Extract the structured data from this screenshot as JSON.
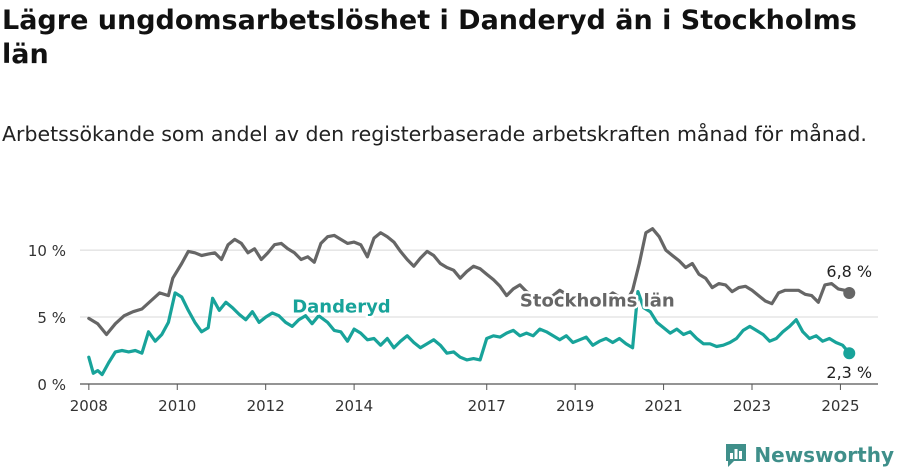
{
  "title": "Lägre ungdomsarbetslöshet i Danderyd än i Stockholms län",
  "subtitle": "Arbetssökande som andel av den registerbaserade arbetskraften månad för månad.",
  "brand": "Newsworthy",
  "chart_data": {
    "type": "line",
    "ylim": [
      0,
      11.8
    ],
    "xlim": [
      2007.8,
      2025.85
    ],
    "yticks": [
      0,
      5,
      10
    ],
    "ytick_labels": [
      "0 %",
      "5 %",
      "10 %"
    ],
    "xticks": [
      2008,
      2010,
      2012,
      2014,
      2017,
      2019,
      2021,
      2023,
      2025
    ],
    "xtick_labels": [
      "2008",
      "2010",
      "2012",
      "2014",
      "2017",
      "2019",
      "2021",
      "2023",
      "2025"
    ],
    "grid": true,
    "legend": "inline labels",
    "series": [
      {
        "name": "Stockholms län",
        "color": "#666666",
        "end_label": "6,8 %",
        "points": [
          [
            2008.0,
            4.9
          ],
          [
            2008.2,
            4.5
          ],
          [
            2008.4,
            3.7
          ],
          [
            2008.6,
            4.5
          ],
          [
            2008.8,
            5.1
          ],
          [
            2009.0,
            5.4
          ],
          [
            2009.2,
            5.6
          ],
          [
            2009.4,
            6.2
          ],
          [
            2009.6,
            6.8
          ],
          [
            2009.8,
            6.6
          ],
          [
            2009.9,
            7.9
          ],
          [
            2010.1,
            9.0
          ],
          [
            2010.25,
            9.9
          ],
          [
            2010.4,
            9.8
          ],
          [
            2010.55,
            9.6
          ],
          [
            2010.7,
            9.7
          ],
          [
            2010.85,
            9.8
          ],
          [
            2011.0,
            9.3
          ],
          [
            2011.15,
            10.4
          ],
          [
            2011.3,
            10.8
          ],
          [
            2011.45,
            10.5
          ],
          [
            2011.6,
            9.8
          ],
          [
            2011.75,
            10.1
          ],
          [
            2011.9,
            9.3
          ],
          [
            2012.05,
            9.8
          ],
          [
            2012.2,
            10.4
          ],
          [
            2012.35,
            10.5
          ],
          [
            2012.5,
            10.1
          ],
          [
            2012.65,
            9.8
          ],
          [
            2012.8,
            9.3
          ],
          [
            2012.95,
            9.5
          ],
          [
            2013.1,
            9.1
          ],
          [
            2013.25,
            10.5
          ],
          [
            2013.4,
            11.0
          ],
          [
            2013.55,
            11.1
          ],
          [
            2013.7,
            10.8
          ],
          [
            2013.85,
            10.5
          ],
          [
            2014.0,
            10.6
          ],
          [
            2014.15,
            10.4
          ],
          [
            2014.3,
            9.5
          ],
          [
            2014.45,
            10.9
          ],
          [
            2014.6,
            11.3
          ],
          [
            2014.75,
            11.0
          ],
          [
            2014.9,
            10.6
          ],
          [
            2015.05,
            9.9
          ],
          [
            2015.2,
            9.3
          ],
          [
            2015.35,
            8.8
          ],
          [
            2015.5,
            9.4
          ],
          [
            2015.65,
            9.9
          ],
          [
            2015.8,
            9.6
          ],
          [
            2015.95,
            9.0
          ],
          [
            2016.1,
            8.7
          ],
          [
            2016.25,
            8.5
          ],
          [
            2016.4,
            7.9
          ],
          [
            2016.55,
            8.4
          ],
          [
            2016.7,
            8.8
          ],
          [
            2016.85,
            8.6
          ],
          [
            2017.0,
            8.2
          ],
          [
            2017.15,
            7.8
          ],
          [
            2017.3,
            7.3
          ],
          [
            2017.45,
            6.6
          ],
          [
            2017.6,
            7.1
          ],
          [
            2017.75,
            7.4
          ],
          [
            2017.9,
            6.9
          ],
          [
            2018.05,
            6.6
          ],
          [
            2018.2,
            6.5
          ],
          [
            2018.35,
            6.2
          ],
          [
            2018.5,
            6.6
          ],
          [
            2018.65,
            7.0
          ],
          [
            2018.8,
            6.7
          ],
          [
            2018.95,
            6.4
          ],
          [
            2019.1,
            6.0
          ],
          [
            2019.25,
            6.2
          ],
          [
            2019.4,
            5.8
          ],
          [
            2019.55,
            6.0
          ],
          [
            2019.7,
            6.4
          ],
          [
            2019.85,
            6.8
          ],
          [
            2020.0,
            6.5
          ],
          [
            2020.15,
            6.1
          ],
          [
            2020.3,
            7.0
          ],
          [
            2020.45,
            9.0
          ],
          [
            2020.6,
            11.3
          ],
          [
            2020.75,
            11.6
          ],
          [
            2020.9,
            11.0
          ],
          [
            2021.05,
            10.0
          ],
          [
            2021.2,
            9.6
          ],
          [
            2021.35,
            9.2
          ],
          [
            2021.5,
            8.7
          ],
          [
            2021.65,
            9.0
          ],
          [
            2021.8,
            8.2
          ],
          [
            2021.95,
            7.9
          ],
          [
            2022.1,
            7.2
          ],
          [
            2022.25,
            7.5
          ],
          [
            2022.4,
            7.4
          ],
          [
            2022.55,
            6.9
          ],
          [
            2022.7,
            7.2
          ],
          [
            2022.85,
            7.3
          ],
          [
            2023.0,
            7.0
          ],
          [
            2023.15,
            6.6
          ],
          [
            2023.3,
            6.2
          ],
          [
            2023.45,
            6.0
          ],
          [
            2023.6,
            6.8
          ],
          [
            2023.75,
            7.0
          ],
          [
            2023.9,
            7.0
          ],
          [
            2024.05,
            7.0
          ],
          [
            2024.2,
            6.7
          ],
          [
            2024.35,
            6.6
          ],
          [
            2024.5,
            6.1
          ],
          [
            2024.65,
            7.4
          ],
          [
            2024.8,
            7.5
          ],
          [
            2024.95,
            7.1
          ],
          [
            2025.1,
            7.0
          ],
          [
            2025.2,
            6.8
          ]
        ]
      },
      {
        "name": "Danderyd",
        "color": "#18a39a",
        "end_label": "2,3 %",
        "points": [
          [
            2008.0,
            2.0
          ],
          [
            2008.1,
            0.8
          ],
          [
            2008.2,
            1.0
          ],
          [
            2008.3,
            0.7
          ],
          [
            2008.45,
            1.6
          ],
          [
            2008.6,
            2.4
          ],
          [
            2008.75,
            2.5
          ],
          [
            2008.9,
            2.4
          ],
          [
            2009.05,
            2.5
          ],
          [
            2009.2,
            2.3
          ],
          [
            2009.35,
            3.9
          ],
          [
            2009.5,
            3.2
          ],
          [
            2009.65,
            3.7
          ],
          [
            2009.8,
            4.6
          ],
          [
            2009.95,
            6.8
          ],
          [
            2010.1,
            6.5
          ],
          [
            2010.25,
            5.5
          ],
          [
            2010.4,
            4.6
          ],
          [
            2010.55,
            3.9
          ],
          [
            2010.7,
            4.2
          ],
          [
            2010.8,
            6.4
          ],
          [
            2010.95,
            5.5
          ],
          [
            2011.1,
            6.1
          ],
          [
            2011.25,
            5.7
          ],
          [
            2011.4,
            5.2
          ],
          [
            2011.55,
            4.8
          ],
          [
            2011.7,
            5.4
          ],
          [
            2011.85,
            4.6
          ],
          [
            2012.0,
            5.0
          ],
          [
            2012.15,
            5.3
          ],
          [
            2012.3,
            5.1
          ],
          [
            2012.45,
            4.6
          ],
          [
            2012.6,
            4.3
          ],
          [
            2012.75,
            4.8
          ],
          [
            2012.9,
            5.1
          ],
          [
            2013.05,
            4.5
          ],
          [
            2013.2,
            5.1
          ],
          [
            2013.4,
            4.6
          ],
          [
            2013.55,
            4.0
          ],
          [
            2013.7,
            3.9
          ],
          [
            2013.85,
            3.2
          ],
          [
            2014.0,
            4.1
          ],
          [
            2014.15,
            3.8
          ],
          [
            2014.3,
            3.3
          ],
          [
            2014.45,
            3.4
          ],
          [
            2014.6,
            2.9
          ],
          [
            2014.75,
            3.4
          ],
          [
            2014.9,
            2.7
          ],
          [
            2015.05,
            3.2
          ],
          [
            2015.2,
            3.6
          ],
          [
            2015.35,
            3.1
          ],
          [
            2015.5,
            2.7
          ],
          [
            2015.65,
            3.0
          ],
          [
            2015.8,
            3.3
          ],
          [
            2015.95,
            2.9
          ],
          [
            2016.1,
            2.3
          ],
          [
            2016.25,
            2.4
          ],
          [
            2016.4,
            2.0
          ],
          [
            2016.55,
            1.8
          ],
          [
            2016.7,
            1.9
          ],
          [
            2016.85,
            1.8
          ],
          [
            2017.0,
            3.4
          ],
          [
            2017.15,
            3.6
          ],
          [
            2017.3,
            3.5
          ],
          [
            2017.45,
            3.8
          ],
          [
            2017.6,
            4.0
          ],
          [
            2017.75,
            3.6
          ],
          [
            2017.9,
            3.8
          ],
          [
            2018.05,
            3.6
          ],
          [
            2018.2,
            4.1
          ],
          [
            2018.35,
            3.9
          ],
          [
            2018.5,
            3.6
          ],
          [
            2018.65,
            3.3
          ],
          [
            2018.8,
            3.6
          ],
          [
            2018.95,
            3.1
          ],
          [
            2019.1,
            3.3
          ],
          [
            2019.25,
            3.5
          ],
          [
            2019.4,
            2.9
          ],
          [
            2019.55,
            3.2
          ],
          [
            2019.7,
            3.4
          ],
          [
            2019.85,
            3.1
          ],
          [
            2020.0,
            3.4
          ],
          [
            2020.15,
            3.0
          ],
          [
            2020.3,
            2.7
          ],
          [
            2020.42,
            6.9
          ],
          [
            2020.55,
            5.7
          ],
          [
            2020.7,
            5.4
          ],
          [
            2020.85,
            4.6
          ],
          [
            2021.0,
            4.2
          ],
          [
            2021.15,
            3.8
          ],
          [
            2021.3,
            4.1
          ],
          [
            2021.45,
            3.7
          ],
          [
            2021.6,
            3.9
          ],
          [
            2021.75,
            3.4
          ],
          [
            2021.9,
            3.0
          ],
          [
            2022.05,
            3.0
          ],
          [
            2022.2,
            2.8
          ],
          [
            2022.35,
            2.9
          ],
          [
            2022.5,
            3.1
          ],
          [
            2022.65,
            3.4
          ],
          [
            2022.8,
            4.0
          ],
          [
            2022.95,
            4.3
          ],
          [
            2023.1,
            4.0
          ],
          [
            2023.25,
            3.7
          ],
          [
            2023.4,
            3.2
          ],
          [
            2023.55,
            3.4
          ],
          [
            2023.7,
            3.9
          ],
          [
            2023.85,
            4.3
          ],
          [
            2024.0,
            4.8
          ],
          [
            2024.15,
            3.9
          ],
          [
            2024.3,
            3.4
          ],
          [
            2024.45,
            3.6
          ],
          [
            2024.6,
            3.2
          ],
          [
            2024.75,
            3.4
          ],
          [
            2024.9,
            3.1
          ],
          [
            2025.05,
            2.9
          ],
          [
            2025.2,
            2.3
          ]
        ]
      }
    ]
  }
}
